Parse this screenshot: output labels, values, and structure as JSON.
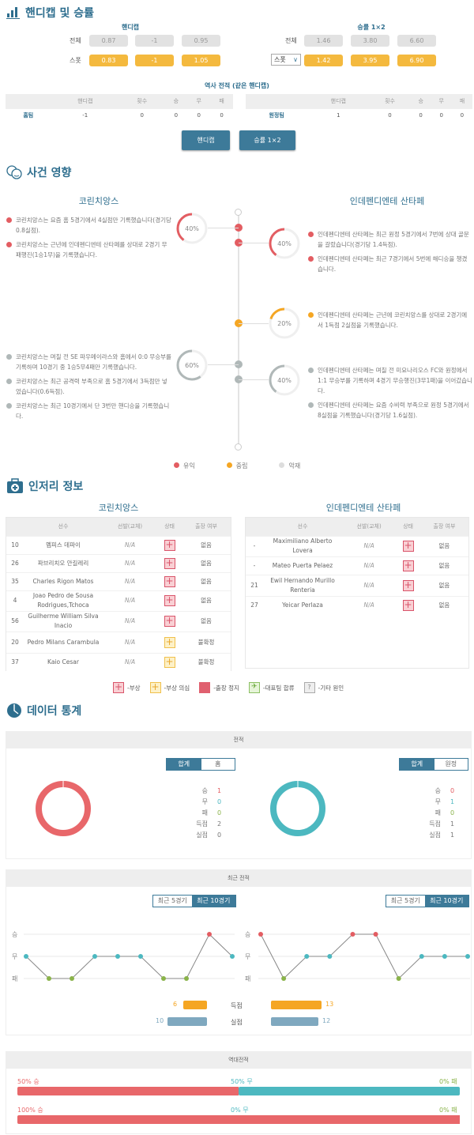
{
  "handicap_section": {
    "title": "핸디캡 및 승률",
    "handicap": {
      "label": "핸디캡",
      "rows": [
        {
          "label": "전체",
          "values": [
            "0.87",
            "-1",
            "0.95"
          ]
        },
        {
          "label": "스폿",
          "values": [
            "0.83",
            "-1",
            "1.05"
          ]
        }
      ]
    },
    "winrate": {
      "label": "승률 1×2",
      "rows": [
        {
          "label": "전체",
          "values": [
            "1.46",
            "3.80",
            "6.60"
          ]
        },
        {
          "label": "스폿",
          "values": [
            "1.42",
            "3.95",
            "6.90"
          ]
        }
      ],
      "select_value": "스폿"
    },
    "history_title": "역사 전적 (같은 핸디캡)",
    "history_headers": [
      "",
      "핸디캡",
      "횟수",
      "승",
      "무",
      "패"
    ],
    "home_row": [
      "홈팀",
      "-1",
      "0",
      "0",
      "0",
      "0"
    ],
    "away_row": [
      "원정팀",
      "1",
      "0",
      "0",
      "0",
      "0"
    ],
    "buttons": [
      "핸디캡",
      "승률 1×2"
    ]
  },
  "events": {
    "title": "사건 영향",
    "home_team": "코린치앙스",
    "away_team": "인데펜디엔테 산타페",
    "groups": [
      {
        "side": "home",
        "type": "positive",
        "percent": "40%",
        "items": [
          "코린치앙스는 요즘 홈 5경기에서 4실점만 기록했습니다(경기당 0.8실점).",
          "코린치앙스는 근년에 인데펜디엔테 산타페를 상대로 2경기 무패행진(1승1무)을 기록했습니다."
        ]
      },
      {
        "side": "away",
        "type": "positive",
        "percent": "40%",
        "items": [
          "인데펜디엔테 산타페는 최근 원정 5경기에서 7번에 상대 골문을 갈랐습니다(경기당 1.4득점).",
          "인데펜디엔테 산타페는 최근 7경기에서 5번에 해디승을 챙겼습니다."
        ]
      },
      {
        "side": "away",
        "type": "neutral",
        "percent": "20%",
        "items": [
          "인데펜디엔테 산타페는 근년에 코린치앙스를 상대로 2경기에서 1득점 2실점을 기록했습니다."
        ]
      },
      {
        "side": "home",
        "type": "negative",
        "percent": "60%",
        "items": [
          "코린치앙스는 며칠 전 SE 파우메이라스와 홈에서 0:0 무승부를 기록하며 10경기 중 1승5무4패만 기록했습니다.",
          "코린치앙스는 최근 공격력 부족으로 홈 5경기에서 3득점만 넣었습니다(0.6득점).",
          "코린치앙스는 최근 10경기에서 단 3번만 핸디승을 기록했습니다."
        ]
      },
      {
        "side": "away",
        "type": "negative",
        "percent": "40%",
        "items": [
          "인데펜디엔테 산타페는 며칠 전 미요나리오스 FC와 원정에서 1:1 무승부를 기록하며 4경기 무승행진(3무1패)을 이어갔습니다.",
          "인데펜디엔테 산타페는 요즘 수비력 부족으로 원정 5경기에서 8실점을 기록했습니다(경기당 1.6실점)."
        ]
      }
    ],
    "legend": [
      "유익",
      "중립",
      "악재"
    ],
    "colors": {
      "positive": "#e35d62",
      "neutral": "#f5a623",
      "negative": "#b0b8b8"
    }
  },
  "injury": {
    "title": "인저리 정보",
    "headers": [
      "선수",
      "선발(교체)",
      "상태",
      "출장 여부"
    ],
    "home_team": "코린치앙스",
    "away_team": "인데펜디엔테 산타페",
    "home": [
      {
        "no": "10",
        "name": "멤피스 데파이",
        "start": "N/A",
        "status": "injury",
        "play": "없음"
      },
      {
        "no": "26",
        "name": "파브리치오 안길레리",
        "start": "N/A",
        "status": "injury",
        "play": "없음"
      },
      {
        "no": "35",
        "name": "Charles Rigon Matos",
        "start": "N/A",
        "status": "injury",
        "play": "없음"
      },
      {
        "no": "4",
        "name": "Joao Pedro de Sousa Rodrigues,Tchoca",
        "start": "N/A",
        "status": "injury",
        "play": "없음"
      },
      {
        "no": "56",
        "name": "Guilherme William Silva Inacio",
        "start": "N/A",
        "status": "injury",
        "play": "없음"
      },
      {
        "no": "20",
        "name": "Pedro Milans Carambula",
        "start": "N/A",
        "status": "doubtful",
        "play": "불확정"
      },
      {
        "no": "37",
        "name": "Kaio Cesar",
        "start": "N/A",
        "status": "doubtful",
        "play": "불확정"
      }
    ],
    "away": [
      {
        "no": "-",
        "name": "Maximiliano Alberto Lovera",
        "start": "N/A",
        "status": "injury",
        "play": "없음"
      },
      {
        "no": "-",
        "name": "Mateo Puerta Pelaez",
        "start": "N/A",
        "status": "injury",
        "play": "없음"
      },
      {
        "no": "21",
        "name": "Ewil Hernando Murillo Renteria",
        "start": "N/A",
        "status": "injury",
        "play": "없음"
      },
      {
        "no": "27",
        "name": "Yeicar Perlaza",
        "start": "N/A",
        "status": "injury",
        "play": "없음"
      }
    ],
    "legend": [
      "-부상",
      "-부상 의심",
      "-출장 정지",
      "-대표팀 합류",
      "-기타 원인"
    ]
  },
  "stats": {
    "title": "데이터 통계",
    "record_title": "전적",
    "home_toggle": [
      "합계",
      "홈"
    ],
    "away_toggle": [
      "합계",
      "원정"
    ],
    "labels": [
      "승",
      "무",
      "패",
      "득점",
      "실점"
    ],
    "home_values": [
      "1",
      "0",
      "0",
      "2",
      "0"
    ],
    "away_values": [
      "0",
      "1",
      "0",
      "1",
      "1"
    ],
    "home_ring_color": "#e8676a",
    "away_ring_color": "#4cb8c0",
    "recent_title": "최근 전적",
    "recent_toggle": [
      "최근 5경기",
      "최근 10경기"
    ],
    "recent_selected": "최근 10경기",
    "goals_label": "득점",
    "conceded_label": "실점",
    "home_goals": "6",
    "away_goals": "13",
    "home_conceded": "10",
    "away_conceded": "12",
    "h2h_title": "역대전적",
    "h2h": [
      {
        "win": "50% 승",
        "draw": "50% 무",
        "loss": "0% 패",
        "win_pct": 50,
        "draw_pct": 50,
        "loss_pct": 0
      },
      {
        "win": "100% 승",
        "draw": "0% 무",
        "loss": "0% 패",
        "win_pct": 100,
        "draw_pct": 0,
        "loss_pct": 0
      }
    ]
  },
  "chart_data": [
    {
      "type": "line",
      "y_categories": [
        "승",
        "무",
        "패"
      ],
      "results": [
        "무",
        "패",
        "패",
        "무",
        "무",
        "무",
        "패",
        "패",
        "승",
        "무"
      ]
    },
    {
      "type": "line",
      "y_categories": [
        "승",
        "무",
        "패"
      ],
      "results": [
        "승",
        "패",
        "무",
        "무",
        "승",
        "승",
        "패",
        "무",
        "무",
        "무"
      ]
    }
  ]
}
